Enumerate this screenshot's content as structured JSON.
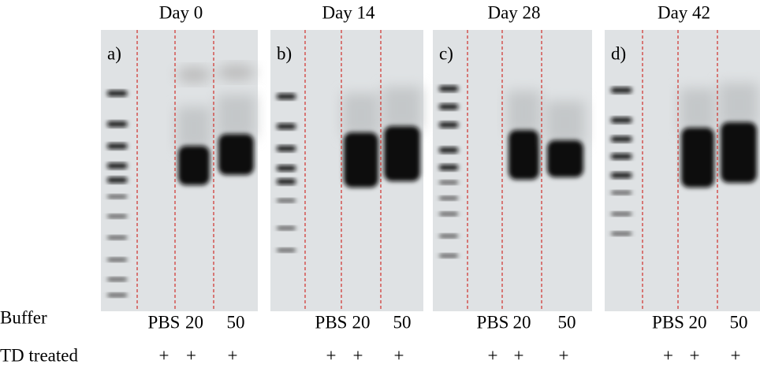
{
  "panels": [
    {
      "title": "Day 0",
      "label": "a)",
      "lanes": [
        "PBS",
        "20",
        "50"
      ],
      "treated": [
        "+",
        "+",
        "+"
      ]
    },
    {
      "title": "Day 14",
      "label": "b)",
      "lanes": [
        "PBS",
        "20",
        "50"
      ],
      "treated": [
        "+",
        "+",
        "+"
      ]
    },
    {
      "title": "Day 28",
      "label": "c)",
      "lanes": [
        "PBS",
        "20",
        "50"
      ],
      "treated": [
        "+",
        "+",
        "+"
      ]
    },
    {
      "title": "Day 42",
      "label": "d)",
      "lanes": [
        "PBS",
        "20",
        "50"
      ],
      "treated": [
        "+",
        "+",
        "+"
      ]
    }
  ],
  "rows": {
    "buffer": "Buffer",
    "treated": "TD treated"
  }
}
